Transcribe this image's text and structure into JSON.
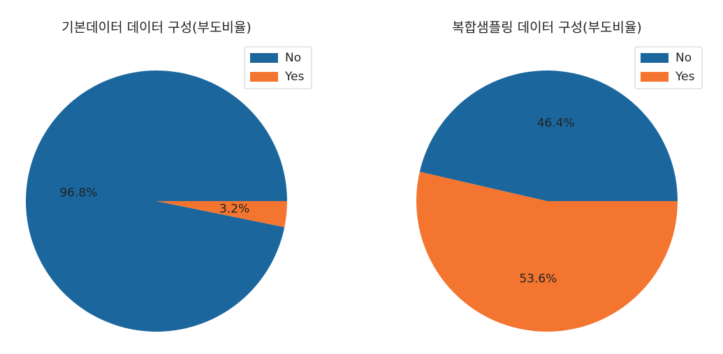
{
  "chart_data": [
    {
      "type": "pie",
      "title": "기본데이터 데이터 구성(부도비율)",
      "categories": [
        "No",
        "Yes"
      ],
      "values": [
        96.8,
        3.2
      ],
      "value_labels": [
        "96.8%",
        "3.2%"
      ],
      "colors": [
        "#1b679d",
        "#f37530"
      ],
      "legend": "upper right"
    },
    {
      "type": "pie",
      "title": "복합샘플링 데이터 구성(부도비율)",
      "categories": [
        "No",
        "Yes"
      ],
      "values": [
        46.4,
        53.6
      ],
      "value_labels": [
        "46.4%",
        "53.6%"
      ],
      "colors": [
        "#1b679d",
        "#f37530"
      ],
      "legend": "upper right"
    }
  ]
}
